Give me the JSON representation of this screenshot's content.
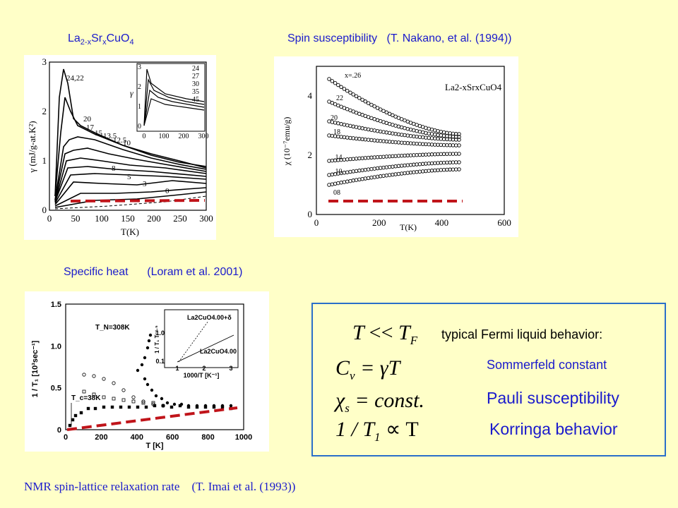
{
  "captions": {
    "lsco_prefix": "La",
    "lsco_sub1": "2-x",
    "lsco_mid": "Sr",
    "lsco_sub2": "x",
    "lsco_end": "CuO",
    "lsco_sub3": "4",
    "spin_label": "Spin susceptibility",
    "spin_ref": "(T. Nakano, et al. (1994))",
    "heat_label": "Specific heat",
    "heat_ref": "(Loram et al. 2001)",
    "nmr_label": "NMR spin-lattice relaxation rate",
    "nmr_ref": "(T. Imai et al. (1993))"
  },
  "box": {
    "fermi_title": "typical Fermi liquid behavior:",
    "sommerfeld": "Sommerfeld constant",
    "pauli": "Pauli susceptibility",
    "korringa": "Korringa behavior",
    "eq1_lhs": "T",
    "eq1_op": "<<",
    "eq1_rhs": "T",
    "eq1_sub": "F",
    "eq2_lhs": "C",
    "eq2_sub": "v",
    "eq2_rhs": "= γT",
    "eq3_lhs": "χ",
    "eq3_sub": "s",
    "eq3_rhs": "= const.",
    "eq4": "1 / T",
    "eq4_sub": "1",
    "eq4_rhs": "∝ T"
  },
  "colors": {
    "caption_blue": "#1a1acc",
    "box_border": "#2a6fc9",
    "dash_red": "#c0141a",
    "background": "#FFFFC8"
  },
  "chart_data": [
    {
      "type": "line",
      "xlabel": "T(K)",
      "ylabel": "γ (mJ/g-at.K²)",
      "xlim": [
        0,
        300
      ],
      "ylim": [
        0,
        3
      ],
      "x_ticks": [
        "0",
        "50",
        "100",
        "150",
        "200",
        "250",
        "300"
      ],
      "y_ticks": [
        "0",
        "1",
        "2",
        "3"
      ],
      "curve_labels": [
        "24,22",
        "20",
        "17",
        "15",
        "13.5",
        "12.5",
        "10",
        "8",
        "5",
        "3",
        "0"
      ],
      "inset": {
        "ylabel": "γ",
        "x_ticks": [
          "0",
          "100",
          "200",
          "300"
        ],
        "y_ticks": [
          "0",
          "1",
          "2",
          "3"
        ],
        "labels": [
          "24",
          "27",
          "30",
          "35",
          "45"
        ]
      }
    },
    {
      "type": "scatter",
      "xlabel": "T(K)",
      "ylabel": "χ (10⁻⁷emu/g)",
      "title_formula": "La2-xSrxCuO4",
      "xlim": [
        0,
        600
      ],
      "ylim": [
        0,
        5
      ],
      "x_ticks": [
        "0",
        "200",
        "400",
        "600"
      ],
      "y_ticks": [
        "0",
        "2",
        "4"
      ],
      "series_labels": [
        "x=.26",
        "22",
        "20",
        "18",
        ".14",
        ".10",
        "08"
      ]
    },
    {
      "type": "scatter",
      "xlabel": "T [K]",
      "ylabel": "1 / T₁ [10³sec⁻¹]",
      "xlim": [
        0,
        1000
      ],
      "ylim": [
        0,
        1.5
      ],
      "x_ticks": [
        "0",
        "200",
        "400",
        "600",
        "800",
        "1000"
      ],
      "y_ticks": [
        "0",
        "0.5",
        "1.0",
        "1.5"
      ],
      "annotations": [
        "T_N=308K",
        "T_c=38K"
      ],
      "inset": {
        "xlabel": "1000/T [K⁻¹]",
        "ylabel": "1 / T₁ T⁻¹·⁵",
        "x_ticks": [
          "1",
          "2",
          "3"
        ],
        "y_ticks": [
          "0.1",
          "1.0"
        ],
        "labels": [
          "La2CuO4.00+δ",
          "La2CuO4.00"
        ]
      }
    }
  ]
}
